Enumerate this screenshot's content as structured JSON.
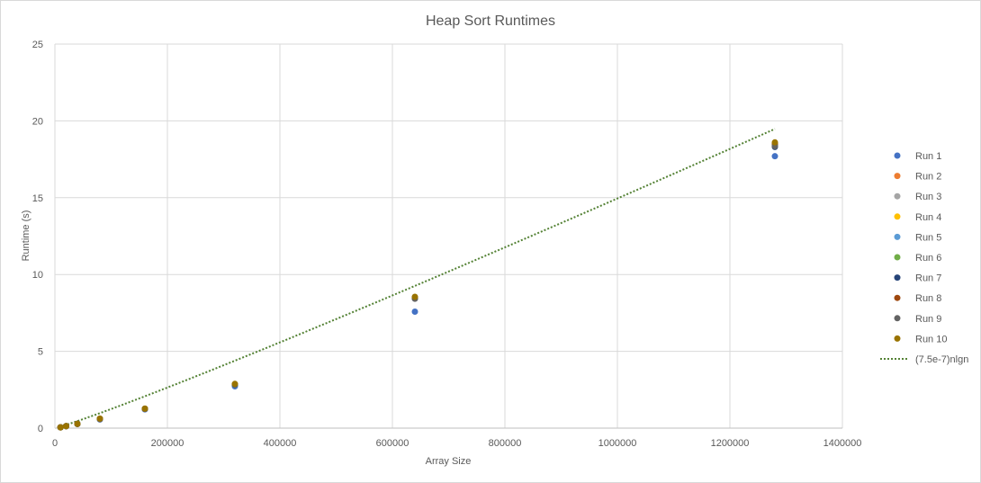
{
  "chart_data": {
    "type": "scatter",
    "title": "Heap Sort Runtimes",
    "xlabel": "Array Size",
    "ylabel": "Runtime (s)",
    "xlim": [
      0,
      1400000
    ],
    "ylim": [
      0,
      25
    ],
    "x_ticks": [
      "0",
      "200000",
      "400000",
      "600000",
      "800000",
      "1000000",
      "1200000",
      "1400000"
    ],
    "y_ticks": [
      "0",
      "5",
      "10",
      "15",
      "20",
      "25"
    ],
    "grid": true,
    "legend_position": "right",
    "x": [
      10000,
      20000,
      40000,
      80000,
      160000,
      320000,
      640000,
      1280000
    ],
    "series": [
      {
        "name": "Run 1",
        "color": "#4472C4",
        "values": [
          0.05,
          0.12,
          0.26,
          0.56,
          1.22,
          2.72,
          7.58,
          17.7
        ]
      },
      {
        "name": "Run 2",
        "color": "#ED7D31",
        "values": [
          0.05,
          0.13,
          0.28,
          0.6,
          1.26,
          2.85,
          8.5,
          18.5
        ]
      },
      {
        "name": "Run 3",
        "color": "#A5A5A5",
        "values": [
          0.05,
          0.13,
          0.28,
          0.6,
          1.26,
          2.82,
          8.45,
          18.4
        ]
      },
      {
        "name": "Run 4",
        "color": "#FFC000",
        "values": [
          0.05,
          0.13,
          0.28,
          0.6,
          1.26,
          2.85,
          8.5,
          18.5
        ]
      },
      {
        "name": "Run 5",
        "color": "#5B9BD5",
        "values": [
          0.05,
          0.13,
          0.28,
          0.6,
          1.25,
          2.8,
          8.45,
          18.4
        ]
      },
      {
        "name": "Run 6",
        "color": "#70AD47",
        "values": [
          0.05,
          0.13,
          0.28,
          0.6,
          1.26,
          2.83,
          8.48,
          18.45
        ]
      },
      {
        "name": "Run 7",
        "color": "#264478",
        "values": [
          0.05,
          0.13,
          0.28,
          0.6,
          1.26,
          2.82,
          8.45,
          18.3
        ]
      },
      {
        "name": "Run 8",
        "color": "#9E480E",
        "values": [
          0.05,
          0.13,
          0.28,
          0.6,
          1.26,
          2.85,
          8.5,
          18.5
        ]
      },
      {
        "name": "Run 9",
        "color": "#636363",
        "values": [
          0.05,
          0.13,
          0.28,
          0.6,
          1.26,
          2.82,
          8.42,
          18.35
        ]
      },
      {
        "name": "Run 10",
        "color": "#997300",
        "values": [
          0.05,
          0.13,
          0.28,
          0.62,
          1.27,
          2.88,
          8.55,
          18.6
        ]
      }
    ],
    "trendline": {
      "name": "(7.5e-7)nlgn",
      "color": "#548235",
      "coefficient": 7.5e-07,
      "x_range": [
        10000,
        1280000
      ]
    }
  }
}
